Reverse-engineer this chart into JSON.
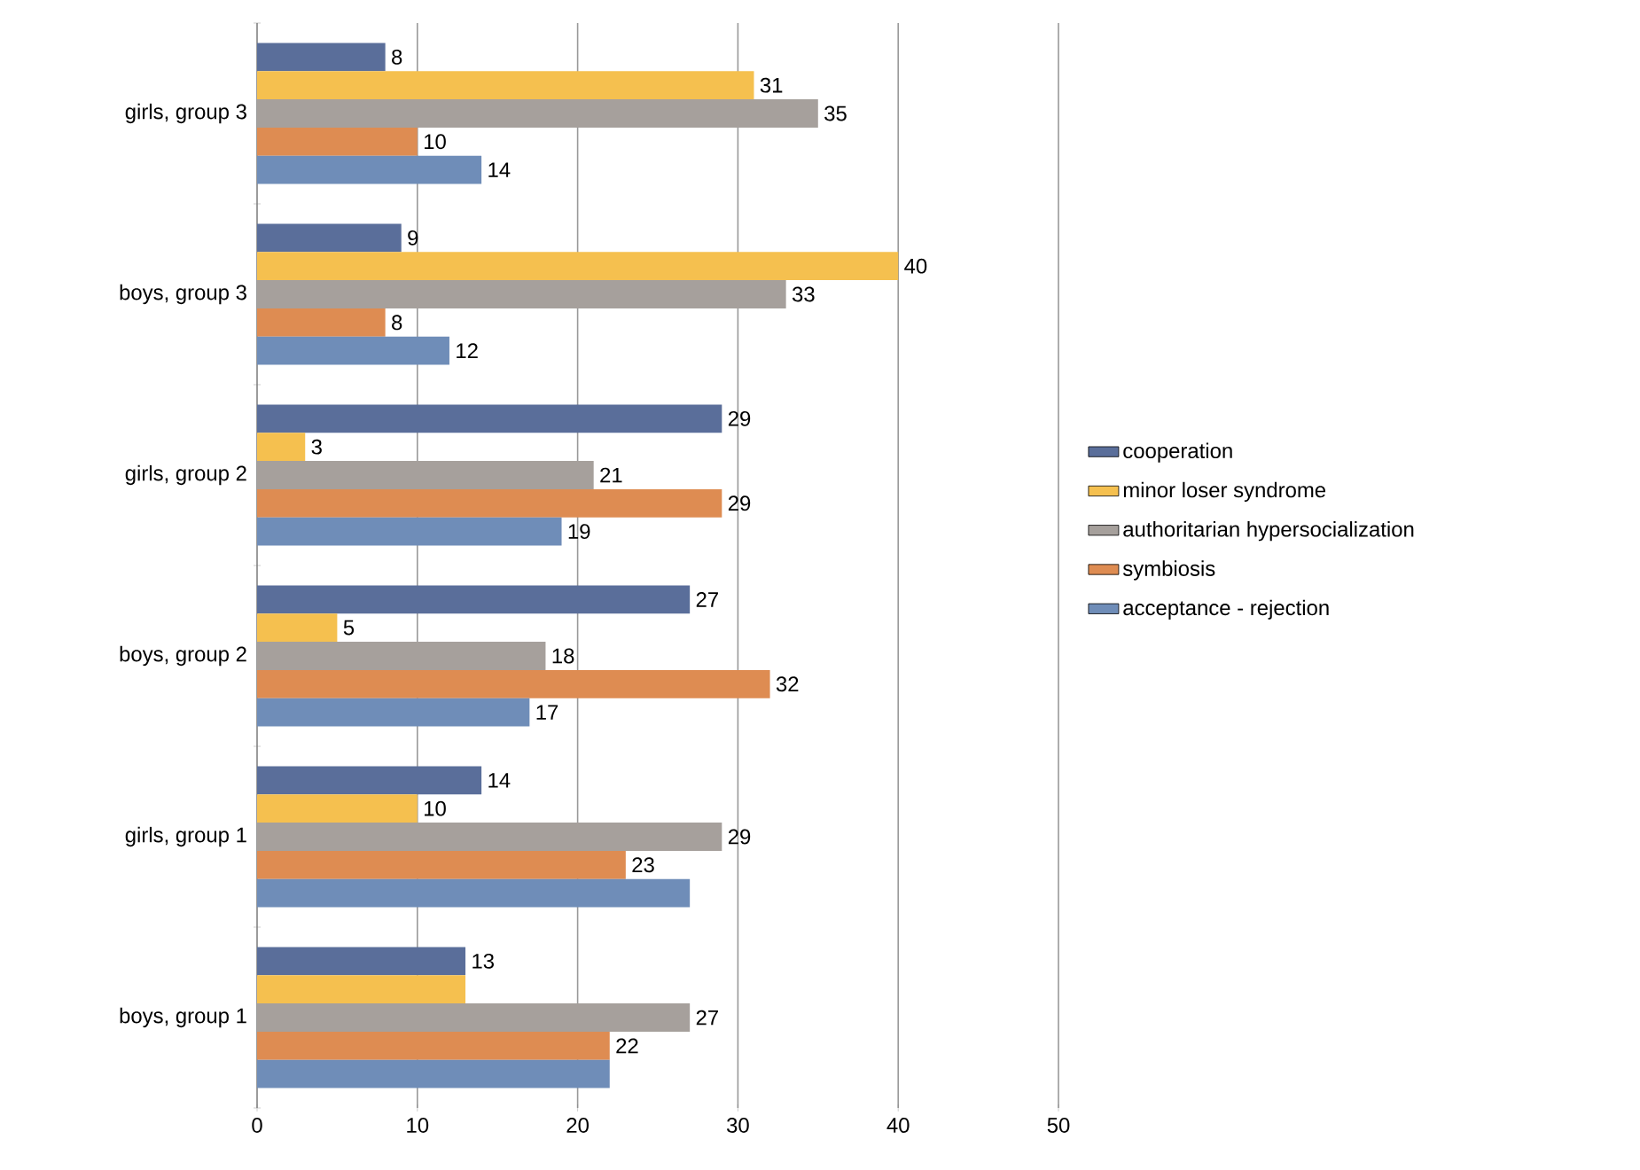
{
  "chart_data": {
    "type": "bar",
    "orientation": "horizontal",
    "categories": [
      "girls, group 3",
      "boys, group 3",
      "girls, group 2",
      "boys, group 2",
      "girls, group 1",
      "boys, group 1"
    ],
    "series": [
      {
        "name": "cooperation",
        "color": "#5a6e9a",
        "values": [
          8,
          9,
          29,
          27,
          14,
          13
        ],
        "value_labels": [
          "8",
          "9",
          "29",
          "27",
          "14",
          "13"
        ]
      },
      {
        "name": "minor loser syndrome",
        "color": "#f5c04f",
        "values": [
          31,
          40,
          3,
          5,
          10,
          13
        ],
        "value_labels": [
          "31",
          "40",
          "3",
          "5",
          "10",
          null
        ]
      },
      {
        "name": "authoritarian hypersocialization",
        "color": "#a6a09c",
        "values": [
          35,
          33,
          21,
          18,
          29,
          27
        ],
        "value_labels": [
          "35",
          "33",
          "21",
          "18",
          "29",
          "27"
        ]
      },
      {
        "name": "symbiosis",
        "color": "#de8c52",
        "values": [
          10,
          8,
          29,
          32,
          23,
          22
        ],
        "value_labels": [
          "10",
          "8",
          "29",
          "32",
          "23",
          "22"
        ]
      },
      {
        "name": "acceptance - rejection",
        "color": "#6f8db8",
        "values": [
          14,
          12,
          19,
          17,
          27,
          22
        ],
        "value_labels": [
          "14",
          "12",
          "19",
          "17",
          null,
          null
        ]
      }
    ],
    "xlim": [
      0,
      50
    ],
    "xticks": [
      0,
      10,
      20,
      30,
      40,
      50
    ],
    "grid": "x",
    "legend": "right"
  }
}
